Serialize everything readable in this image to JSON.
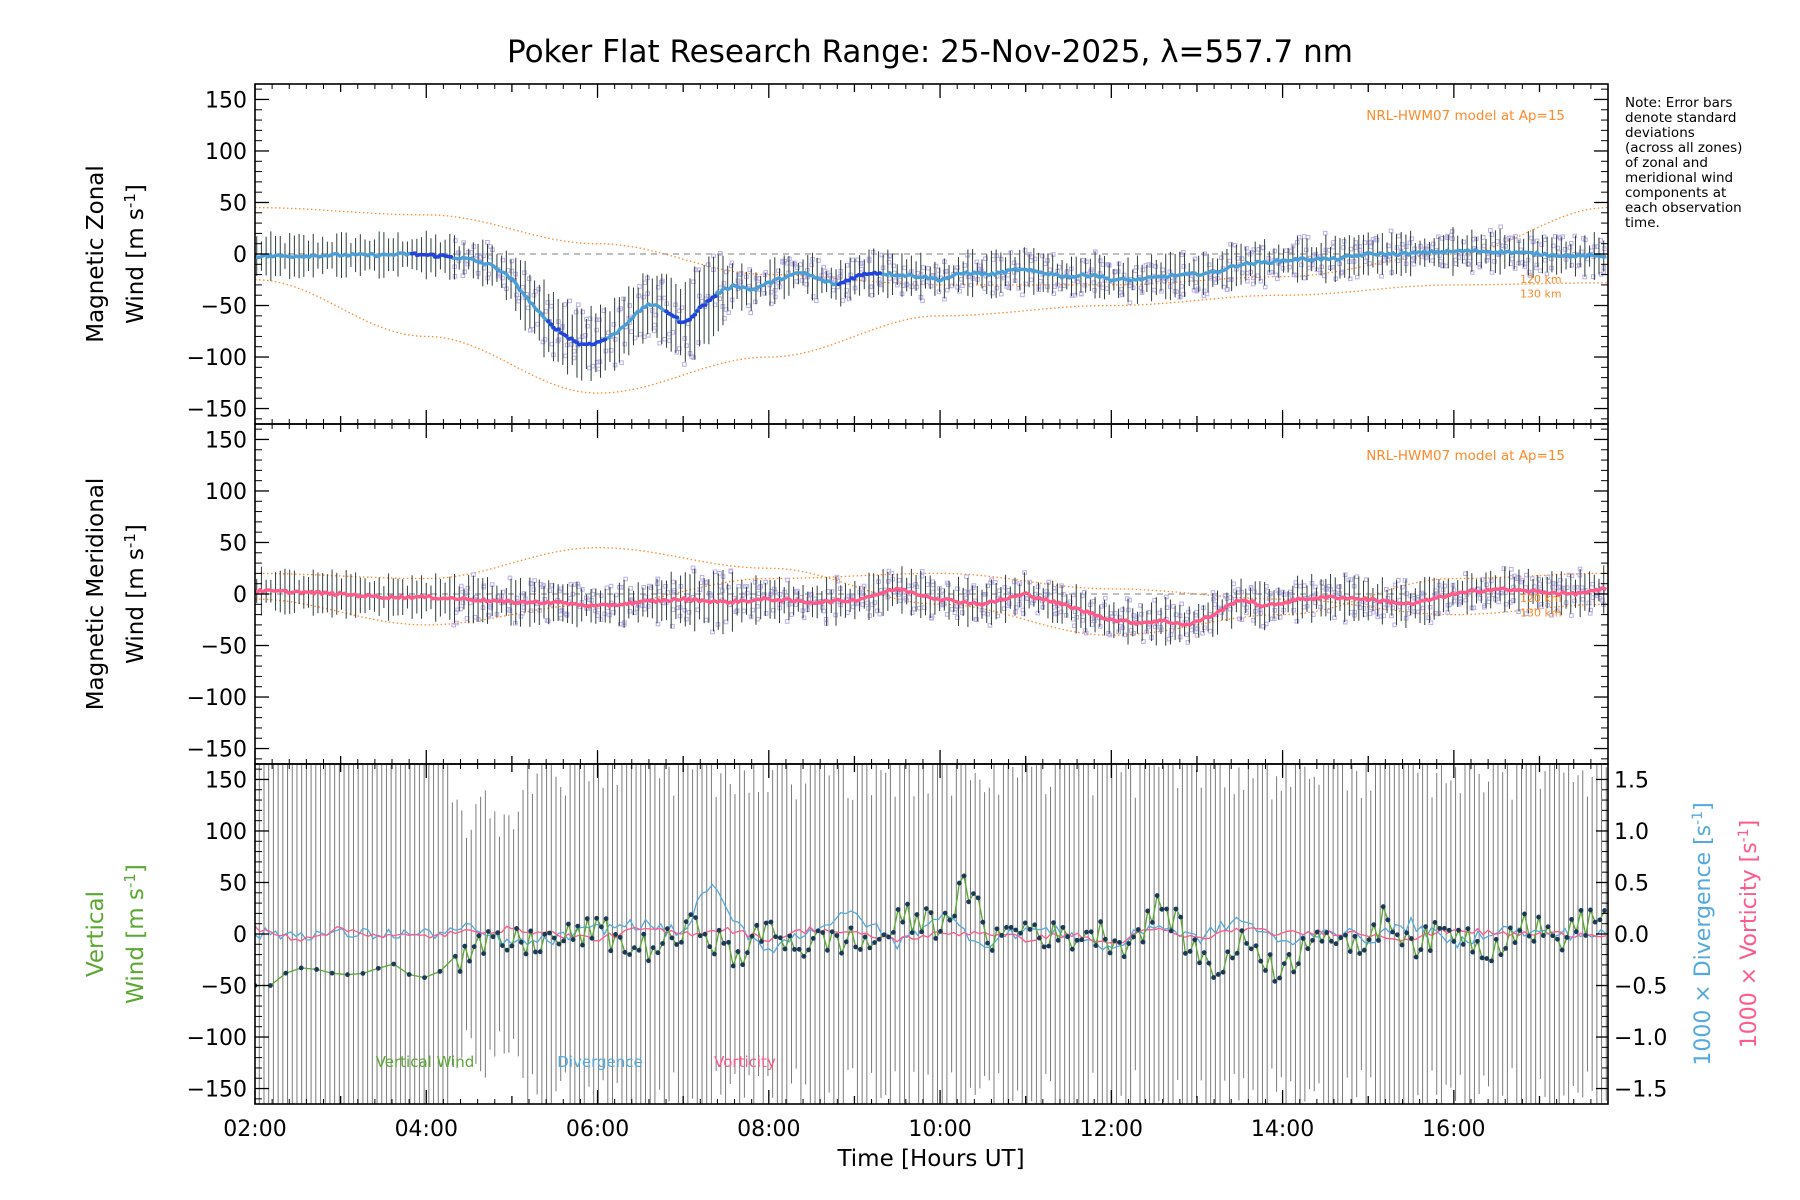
{
  "figure": {
    "title": "Poker Flat Research Range: 25-Nov-2025, λ=557.7 nm",
    "note_lines": [
      "Note: Error bars",
      "denote standard",
      "deviations",
      "(across all zones)",
      "of zonal and",
      "meridional wind",
      "components at",
      "each observation",
      "time."
    ],
    "colors": {
      "zonal": "#4a9fd8",
      "zonal_early": "#2244dd",
      "meridional": "#ff5a8a",
      "vertical": "#5aa832",
      "vertical_dots": "#1a3a55",
      "divergence": "#55aadd",
      "vorticity": "#ff5a8a",
      "model": "#ff8a2a",
      "scatter": "#b8b0e8",
      "errorbar": "#2d3d3a",
      "shading": "#f2c8a0",
      "grid_dash": "#999999"
    }
  },
  "chart_data": [
    {
      "type": "line",
      "panel": "zonal",
      "ylabel_line1": "Magnetic Zonal",
      "ylabel_line2": "Wind [m s",
      "ylabel_sup": "-1",
      "ylabel_close": "]",
      "ylim": [
        -165,
        165
      ],
      "yticks": [
        150,
        100,
        50,
        0,
        -50,
        -100,
        -150
      ],
      "ytick_labels": [
        "150",
        "100",
        "50",
        "0",
        "−50",
        "−100",
        "−150"
      ],
      "xlim": [
        2.0,
        17.8
      ],
      "model_label": "NRL-HWM07 model at Ap=15",
      "model_height_labels": [
        "120 km",
        "130 km"
      ],
      "series": [
        {
          "name": "Zonal wind",
          "x": [
            2.0,
            2.5,
            3.0,
            3.5,
            3.8,
            4.2,
            4.5,
            4.8,
            5.0,
            5.2,
            5.4,
            5.6,
            5.8,
            6.0,
            6.2,
            6.4,
            6.6,
            6.8,
            7.0,
            7.2,
            7.4,
            7.6,
            7.8,
            8.0,
            8.2,
            8.4,
            8.6,
            8.8,
            9.0,
            9.2,
            9.5,
            9.8,
            10.0,
            10.3,
            10.6,
            10.9,
            11.2,
            11.5,
            11.8,
            12.0,
            12.3,
            12.6,
            12.9,
            13.2,
            13.5,
            13.8,
            14.2,
            14.6,
            15.0,
            15.4,
            15.8,
            16.2,
            16.6,
            17.0,
            17.4,
            17.8
          ],
          "y": [
            -2,
            -2,
            -1,
            -1,
            0,
            -2,
            -5,
            -12,
            -25,
            -45,
            -65,
            -78,
            -88,
            -86,
            -78,
            -62,
            -48,
            -55,
            -68,
            -52,
            -38,
            -30,
            -35,
            -28,
            -22,
            -18,
            -25,
            -30,
            -22,
            -18,
            -20,
            -22,
            -25,
            -18,
            -20,
            -15,
            -18,
            -22,
            -20,
            -25,
            -25,
            -22,
            -20,
            -18,
            -10,
            -8,
            -5,
            -5,
            0,
            0,
            2,
            3,
            2,
            0,
            -2,
            -2
          ]
        }
      ],
      "model_curves": [
        {
          "name": "120 km",
          "x": [
            2.0,
            4.0,
            6.0,
            8.0,
            10.0,
            12.0,
            14.0,
            16.0,
            17.8
          ],
          "y": [
            45,
            38,
            10,
            -20,
            -30,
            -30,
            -22,
            0,
            45
          ]
        },
        {
          "name": "130 km",
          "x": [
            2.0,
            4.0,
            6.0,
            8.0,
            10.0,
            12.0,
            14.0,
            16.0,
            17.8
          ],
          "y": [
            -25,
            -80,
            -135,
            -100,
            -60,
            -50,
            -40,
            -30,
            -28
          ]
        }
      ]
    },
    {
      "type": "line",
      "panel": "meridional",
      "ylabel_line1": "Magnetic Meridional",
      "ylabel_line2": "Wind [m s",
      "ylabel_sup": "-1",
      "ylabel_close": "]",
      "ylim": [
        -165,
        165
      ],
      "yticks": [
        150,
        100,
        50,
        0,
        -50,
        -100,
        -150
      ],
      "ytick_labels": [
        "150",
        "100",
        "50",
        "0",
        "−50",
        "−100",
        "−150"
      ],
      "xlim": [
        2.0,
        17.8
      ],
      "model_label": "NRL-HWM07 model at Ap=15",
      "model_height_labels": [
        "120 km",
        "130 km"
      ],
      "series": [
        {
          "name": "Meridional wind",
          "x": [
            2.0,
            2.5,
            3.0,
            3.5,
            4.0,
            4.5,
            5.0,
            5.5,
            6.0,
            6.5,
            7.0,
            7.5,
            8.0,
            8.5,
            9.0,
            9.5,
            10.0,
            10.5,
            11.0,
            11.5,
            12.0,
            12.3,
            12.6,
            12.9,
            13.2,
            13.5,
            13.8,
            14.2,
            14.6,
            15.0,
            15.5,
            16.0,
            16.5,
            17.0,
            17.4,
            17.8
          ],
          "y": [
            3,
            2,
            0,
            -3,
            -3,
            -5,
            -8,
            -8,
            -12,
            -8,
            -5,
            -8,
            -5,
            -8,
            -6,
            5,
            -5,
            -10,
            0,
            -12,
            -25,
            -28,
            -26,
            -30,
            -20,
            -5,
            -12,
            -5,
            -3,
            -5,
            -10,
            0,
            5,
            2,
            0,
            5
          ]
        }
      ],
      "model_curves": [
        {
          "name": "120 km",
          "x": [
            2.0,
            4.0,
            6.0,
            8.0,
            10.0,
            12.0,
            14.0,
            16.0,
            17.8
          ],
          "y": [
            20,
            15,
            45,
            25,
            -10,
            -40,
            -20,
            15,
            20
          ]
        },
        {
          "name": "130 km",
          "x": [
            2.0,
            4.0,
            6.0,
            8.0,
            10.0,
            12.0,
            14.0,
            16.0,
            17.8
          ],
          "y": [
            -5,
            -30,
            -10,
            15,
            20,
            5,
            -5,
            -20,
            -10
          ]
        }
      ]
    },
    {
      "type": "line",
      "panel": "vertical",
      "ylabel_line1": "Vertical",
      "ylabel_line2": "Wind [m s",
      "ylabel_sup": "-1",
      "ylabel_close": "]",
      "ylim": [
        -165,
        165
      ],
      "yticks": [
        150,
        100,
        50,
        0,
        -50,
        -100,
        -150
      ],
      "ytick_labels": [
        "150",
        "100",
        "50",
        "0",
        "−50",
        "−100",
        "−150"
      ],
      "y2lim": [
        -1.65,
        1.65
      ],
      "y2ticks": [
        1.5,
        1.0,
        0.5,
        0.0,
        -0.5,
        -1.0,
        -1.5
      ],
      "y2tick_labels": [
        "1.5",
        "1.0",
        "0.5",
        "0.0",
        "−0.5",
        "−1.0",
        "−1.5"
      ],
      "y2label_div": "1000 × Divergence [s",
      "y2label_vort": "1000 × Vorticity [s",
      "y2label_sup": "-1",
      "y2label_close": "]",
      "xlim": [
        2.0,
        17.8
      ],
      "xticks": [
        2,
        4,
        6,
        8,
        10,
        12,
        14,
        16
      ],
      "xtick_labels": [
        "02:00",
        "04:00",
        "06:00",
        "08:00",
        "10:00",
        "12:00",
        "14:00",
        "16:00"
      ],
      "xlabel": "Time [Hours UT]",
      "legend": [
        "Vertical Wind",
        "Divergence",
        "Vorticity"
      ],
      "series": [
        {
          "name": "Vertical Wind",
          "x": [
            2.0,
            2.2,
            2.4,
            2.6,
            3.0,
            3.3,
            3.6,
            3.9,
            4.2,
            4.5,
            4.8,
            5.2,
            5.6,
            6.0,
            6.4,
            6.8,
            7.2,
            7.6,
            8.0,
            8.4,
            8.8,
            9.2,
            9.6,
            10.0,
            10.3,
            10.6,
            11.0,
            11.4,
            11.8,
            12.2,
            12.6,
            12.9,
            13.2,
            13.6,
            14.0,
            14.4,
            14.8,
            15.2,
            15.6,
            16.0,
            16.4,
            16.8,
            17.2,
            17.6,
            17.8
          ],
          "y": [
            -50,
            -50,
            -35,
            -32,
            -40,
            -38,
            -28,
            -45,
            -35,
            -20,
            -10,
            -8,
            -5,
            5,
            -15,
            -10,
            10,
            -25,
            5,
            -12,
            -5,
            -10,
            15,
            10,
            45,
            -5,
            8,
            -5,
            2,
            -10,
            30,
            -10,
            -35,
            -5,
            -40,
            10,
            -20,
            15,
            -10,
            5,
            -15,
            10,
            -5,
            15,
            20
          ]
        },
        {
          "name": "Divergence",
          "x": [
            2.0,
            3.0,
            4.0,
            4.5,
            5.0,
            5.5,
            6.0,
            6.5,
            7.0,
            7.3,
            7.6,
            8.0,
            8.5,
            9.0,
            9.5,
            10.0,
            10.5,
            11.0,
            11.5,
            12.0,
            12.5,
            13.0,
            13.5,
            14.0,
            14.5,
            15.0,
            15.5,
            16.0,
            16.5,
            17.0,
            17.8
          ],
          "y": [
            0.0,
            0.0,
            0.0,
            0.05,
            -0.1,
            -0.05,
            0.05,
            0.1,
            0.0,
            0.5,
            0.1,
            -0.15,
            0.05,
            0.2,
            -0.1,
            0.2,
            -0.1,
            0.05,
            0.0,
            -0.15,
            0.1,
            -0.05,
            0.15,
            -0.1,
            0.05,
            -0.05,
            0.1,
            -0.1,
            0.05,
            0.0,
            0.0
          ]
        },
        {
          "name": "Vorticity",
          "x": [
            2.0,
            2.5,
            3.0,
            3.5,
            4.0,
            4.5,
            5.0,
            5.5,
            6.0,
            6.5,
            7.0,
            7.5,
            8.0,
            8.5,
            9.0,
            9.5,
            10.0,
            10.5,
            11.0,
            11.5,
            12.0,
            12.5,
            13.0,
            13.5,
            14.0,
            14.5,
            15.0,
            15.5,
            16.0,
            16.5,
            17.0,
            17.8
          ],
          "y": [
            0.05,
            -0.05,
            0.05,
            -0.02,
            -0.02,
            0.02,
            0.05,
            0.0,
            -0.05,
            0.05,
            0.0,
            0.05,
            -0.05,
            0.05,
            0.0,
            -0.05,
            0.0,
            0.02,
            -0.05,
            0.0,
            -0.1,
            0.05,
            -0.05,
            0.05,
            0.0,
            0.02,
            0.0,
            -0.05,
            0.05,
            0.0,
            0.0,
            0.0
          ]
        }
      ]
    }
  ]
}
